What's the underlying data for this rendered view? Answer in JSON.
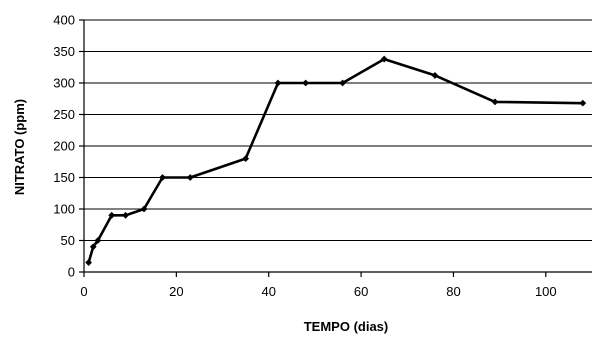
{
  "chart_data": {
    "type": "line",
    "xlabel": "TEMPO (dias)",
    "ylabel": "NITRATO (ppm)",
    "xlim": [
      0,
      110
    ],
    "ylim": [
      0,
      400
    ],
    "xticks": [
      0,
      20,
      40,
      60,
      80,
      100
    ],
    "yticks": [
      0,
      50,
      100,
      150,
      200,
      250,
      300,
      350,
      400
    ],
    "grid": "horizontal",
    "legend": "none",
    "series": [
      {
        "x": [
          1,
          2,
          3,
          6,
          9,
          13,
          17,
          23,
          35,
          42,
          48,
          56,
          65,
          76,
          89,
          108
        ],
        "y": [
          15,
          40,
          50,
          90,
          90,
          100,
          150,
          150,
          180,
          300,
          300,
          300,
          338,
          312,
          270,
          268
        ],
        "color": "#000000"
      }
    ]
  }
}
